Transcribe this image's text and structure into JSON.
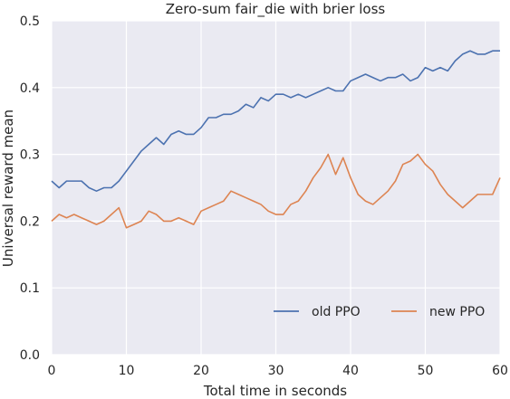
{
  "chart_data": {
    "type": "line",
    "title": "Zero-sum fair_die with brier loss",
    "xlabel": "Total time in seconds",
    "ylabel": "Universal reward mean",
    "xlim": [
      0,
      60
    ],
    "ylim": [
      0,
      0.5
    ],
    "xticks": [
      0,
      10,
      20,
      30,
      40,
      50,
      60
    ],
    "xtick_labels": [
      "0",
      "10",
      "20",
      "30",
      "40",
      "50",
      "60"
    ],
    "yticks": [
      0,
      0.1,
      0.2,
      0.3,
      0.4,
      0.5
    ],
    "ytick_labels": [
      "0.0",
      "0.1",
      "0.2",
      "0.3",
      "0.4",
      "0.5"
    ],
    "grid": true,
    "background": "#eaeaf2",
    "legend_position": "lower-right",
    "series": [
      {
        "name": "old PPO",
        "color": "#4c72b0",
        "x": [
          0,
          1,
          2,
          3,
          4,
          5,
          6,
          7,
          8,
          9,
          10,
          11,
          12,
          13,
          14,
          15,
          16,
          17,
          18,
          19,
          20,
          21,
          22,
          23,
          24,
          25,
          26,
          27,
          28,
          29,
          30,
          31,
          32,
          33,
          34,
          35,
          36,
          37,
          38,
          39,
          40,
          41,
          42,
          43,
          44,
          45,
          46,
          47,
          48,
          49,
          50,
          51,
          52,
          53,
          54,
          55,
          56,
          57,
          58,
          59,
          60
        ],
        "values": [
          0.26,
          0.25,
          0.26,
          0.26,
          0.26,
          0.25,
          0.245,
          0.25,
          0.25,
          0.26,
          0.275,
          0.29,
          0.305,
          0.315,
          0.325,
          0.315,
          0.33,
          0.335,
          0.33,
          0.33,
          0.34,
          0.355,
          0.355,
          0.36,
          0.36,
          0.365,
          0.375,
          0.37,
          0.385,
          0.38,
          0.39,
          0.39,
          0.385,
          0.39,
          0.385,
          0.39,
          0.395,
          0.4,
          0.395,
          0.395,
          0.41,
          0.415,
          0.42,
          0.415,
          0.41,
          0.415,
          0.415,
          0.42,
          0.41,
          0.415,
          0.43,
          0.425,
          0.43,
          0.425,
          0.44,
          0.45,
          0.455,
          0.45,
          0.45,
          0.455,
          0.455
        ]
      },
      {
        "name": "new PPO",
        "color": "#dd8452",
        "x": [
          0,
          1,
          2,
          3,
          4,
          5,
          6,
          7,
          8,
          9,
          10,
          11,
          12,
          13,
          14,
          15,
          16,
          17,
          18,
          19,
          20,
          21,
          22,
          23,
          24,
          25,
          26,
          27,
          28,
          29,
          30,
          31,
          32,
          33,
          34,
          35,
          36,
          37,
          38,
          39,
          40,
          41,
          42,
          43,
          44,
          45,
          46,
          47,
          48,
          49,
          50,
          51,
          52,
          53,
          54,
          55,
          56,
          57,
          58,
          59,
          60
        ],
        "values": [
          0.2,
          0.21,
          0.205,
          0.21,
          0.205,
          0.2,
          0.195,
          0.2,
          0.21,
          0.22,
          0.19,
          0.195,
          0.2,
          0.215,
          0.21,
          0.2,
          0.2,
          0.205,
          0.2,
          0.195,
          0.215,
          0.22,
          0.225,
          0.23,
          0.245,
          0.24,
          0.235,
          0.23,
          0.225,
          0.215,
          0.21,
          0.21,
          0.225,
          0.23,
          0.245,
          0.265,
          0.28,
          0.3,
          0.27,
          0.295,
          0.265,
          0.24,
          0.23,
          0.225,
          0.235,
          0.245,
          0.26,
          0.285,
          0.29,
          0.3,
          0.285,
          0.275,
          0.255,
          0.24,
          0.23,
          0.22,
          0.23,
          0.24,
          0.24,
          0.24,
          0.265
        ]
      }
    ]
  }
}
